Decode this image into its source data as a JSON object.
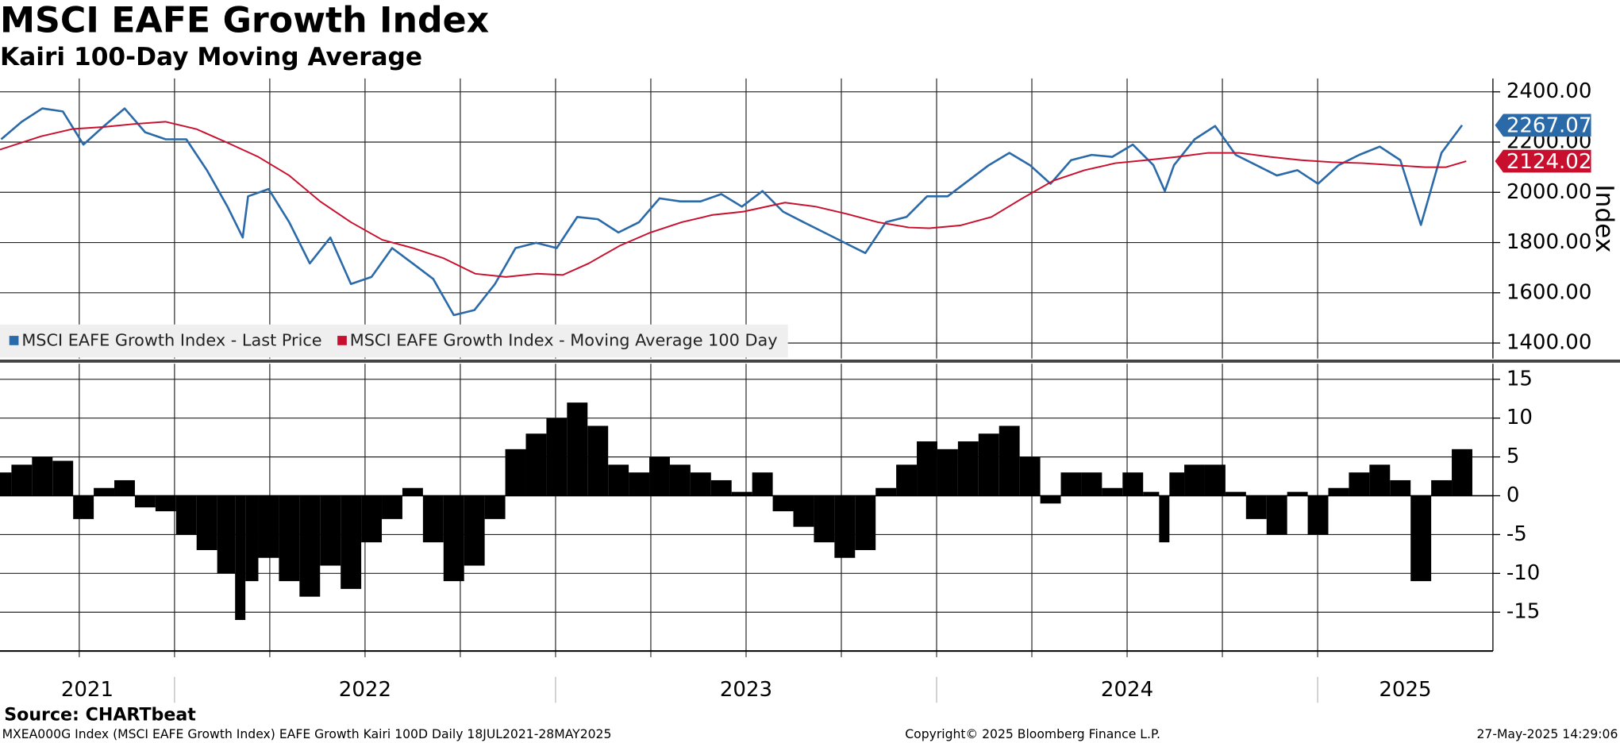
{
  "title": "MSCI EAFE Growth Index",
  "subtitle": "Kairi 100-Day Moving Average",
  "source": "Source: CHARTbeat",
  "footer_left": "MXEA000G Index (MSCI EAFE Growth Index) EAFE Growth Kairi 100D  Daily 18JUL2021-28MAY2025",
  "copyright": "Copyright© 2025 Bloomberg Finance L.P.",
  "timestamp": "27-May-2025 14:29:06",
  "chart_data": [
    {
      "type": "line",
      "ylabel": "Index",
      "xlim": [
        2021.542,
        2025.46
      ],
      "xticks": [
        2021.75,
        2022.0,
        2022.25,
        2022.5,
        2022.75,
        2023.0,
        2023.25,
        2023.5,
        2023.75,
        2024.0,
        2024.25,
        2024.5,
        2024.75,
        2025.0
      ],
      "ylim": [
        1338,
        2453
      ],
      "yticks": [
        {
          "value": 1400,
          "label": "1400.00"
        },
        {
          "value": 1600,
          "label": "1600.00"
        },
        {
          "value": 1800,
          "label": "1800.00"
        },
        {
          "value": 2000,
          "label": "2000.00"
        },
        {
          "value": 2200,
          "label": "2200.00"
        },
        {
          "value": 2400,
          "label": "2400.00"
        }
      ],
      "grid": true,
      "legend": "bottom-left",
      "series": [
        {
          "name": "MSCI EAFE Growth Index - Last Price",
          "color": "#2b6aa9",
          "x": [
            2021.545,
            2021.599,
            2021.653,
            2021.707,
            2021.761,
            2021.815,
            2021.869,
            2021.923,
            2021.977,
            2022.031,
            2022.085,
            2022.139,
            2022.179,
            2022.193,
            2022.247,
            2022.301,
            2022.355,
            2022.409,
            2022.463,
            2022.517,
            2022.571,
            2022.625,
            2022.679,
            2022.733,
            2022.787,
            2022.841,
            2022.895,
            2022.949,
            2023.003,
            2023.057,
            2023.111,
            2023.165,
            2023.219,
            2023.273,
            2023.327,
            2023.381,
            2023.435,
            2023.489,
            2023.543,
            2023.597,
            2023.651,
            2023.705,
            2023.759,
            2023.813,
            2023.867,
            2023.921,
            2023.975,
            2024.029,
            2024.083,
            2024.137,
            2024.191,
            2024.245,
            2024.299,
            2024.353,
            2024.407,
            2024.461,
            2024.515,
            2024.569,
            2024.599,
            2024.623,
            2024.677,
            2024.731,
            2024.785,
            2024.839,
            2024.893,
            2024.947,
            2025.001,
            2025.055,
            2025.109,
            2025.163,
            2025.217,
            2025.271,
            2025.325,
            2025.379
          ],
          "values": [
            2211,
            2281,
            2334,
            2322,
            2190,
            2264,
            2334,
            2239,
            2211,
            2211,
            2088,
            1943,
            1820,
            1984,
            2013,
            1881,
            1717,
            1820,
            1635,
            1663,
            1778,
            1717,
            1655,
            1511,
            1531,
            1635,
            1778,
            1799,
            1778,
            1902,
            1893,
            1840,
            1881,
            1976,
            1964,
            1964,
            1993,
            1943,
            2005,
            1923,
            1881,
            1840,
            1799,
            1758,
            1881,
            1902,
            1984,
            1984,
            2046,
            2108,
            2157,
            2108,
            2034,
            2128,
            2149,
            2141,
            2190,
            2108,
            2005,
            2108,
            2211,
            2264,
            2149,
            2108,
            2067,
            2088,
            2034,
            2108,
            2149,
            2182,
            2128,
            1870,
            2157,
            2267.07
          ]
        },
        {
          "name": "MSCI EAFE Growth Index - Moving Average 100 Day",
          "color": "#c8102e",
          "x": [
            2021.542,
            2021.65,
            2021.732,
            2021.813,
            2021.894,
            2021.976,
            2022.057,
            2022.138,
            2022.22,
            2022.301,
            2022.382,
            2022.463,
            2022.545,
            2022.626,
            2022.707,
            2022.789,
            2022.87,
            2022.951,
            2023.019,
            2023.087,
            2023.168,
            2023.249,
            2023.331,
            2023.412,
            2023.493,
            2023.602,
            2023.683,
            2023.764,
            2023.846,
            2023.927,
            2023.981,
            2024.062,
            2024.144,
            2024.225,
            2024.306,
            2024.388,
            2024.469,
            2024.55,
            2024.631,
            2024.713,
            2024.794,
            2024.875,
            2024.957,
            2025.038,
            2025.119,
            2025.201,
            2025.282,
            2025.336,
            2025.39
          ],
          "values": [
            2170,
            2223,
            2252,
            2260,
            2272,
            2281,
            2252,
            2198,
            2141,
            2067,
            1964,
            1881,
            1811,
            1778,
            1737,
            1676,
            1663,
            1676,
            1671,
            1717,
            1787,
            1840,
            1881,
            1910,
            1923,
            1959,
            1943,
            1914,
            1881,
            1860,
            1857,
            1868,
            1902,
            1976,
            2046,
            2088,
            2116,
            2128,
            2141,
            2157,
            2157,
            2141,
            2128,
            2120,
            2116,
            2108,
            2100,
            2100,
            2124.02
          ]
        }
      ]
    },
    {
      "type": "bar",
      "color": "#000000",
      "xlim": [
        2021.542,
        2025.46
      ],
      "xticks": [
        2021.75,
        2022.0,
        2022.25,
        2022.5,
        2022.75,
        2023.0,
        2023.25,
        2023.5,
        2023.75,
        2024.0,
        2024.25,
        2024.5,
        2024.75,
        2025.0
      ],
      "year_labels": [
        2021,
        2022,
        2023,
        2024,
        2025
      ],
      "ylim": [
        -20,
        17
      ],
      "yticks": [
        -15,
        -10,
        -5,
        0,
        5,
        10,
        15
      ],
      "grid": true,
      "x": [
        2021.545,
        2021.599,
        2021.653,
        2021.707,
        2021.761,
        2021.815,
        2021.869,
        2021.923,
        2021.977,
        2022.031,
        2022.085,
        2022.139,
        2022.179,
        2022.193,
        2022.247,
        2022.301,
        2022.355,
        2022.409,
        2022.463,
        2022.517,
        2022.571,
        2022.625,
        2022.679,
        2022.733,
        2022.787,
        2022.841,
        2022.895,
        2022.949,
        2023.003,
        2023.057,
        2023.111,
        2023.165,
        2023.219,
        2023.273,
        2023.327,
        2023.381,
        2023.435,
        2023.489,
        2023.543,
        2023.597,
        2023.651,
        2023.705,
        2023.759,
        2023.813,
        2023.867,
        2023.921,
        2023.975,
        2024.029,
        2024.083,
        2024.137,
        2024.191,
        2024.245,
        2024.299,
        2024.353,
        2024.407,
        2024.461,
        2024.515,
        2024.569,
        2024.599,
        2024.623,
        2024.677,
        2024.731,
        2024.785,
        2024.839,
        2024.893,
        2024.947,
        2025.001,
        2025.055,
        2025.109,
        2025.163,
        2025.217,
        2025.271,
        2025.325,
        2025.379
      ],
      "values": [
        3,
        4,
        5,
        4.5,
        -3,
        1,
        2,
        -1.5,
        -2,
        -5,
        -7,
        -10,
        -16,
        -11,
        -8,
        -11,
        -13,
        -9,
        -12,
        -6,
        -3,
        1,
        -6,
        -11,
        -9,
        -3,
        6,
        8,
        10,
        12,
        9,
        4,
        3,
        5,
        4,
        3,
        2,
        0.5,
        3,
        -2,
        -4,
        -6,
        -8,
        -7,
        1,
        4,
        7,
        6,
        7,
        8,
        9,
        5,
        -1,
        3,
        3,
        1,
        3,
        0.5,
        -6,
        3,
        4,
        4,
        0.5,
        -3,
        -5,
        0.5,
        -5,
        1,
        3,
        4,
        2,
        -11,
        2,
        6
      ]
    }
  ]
}
